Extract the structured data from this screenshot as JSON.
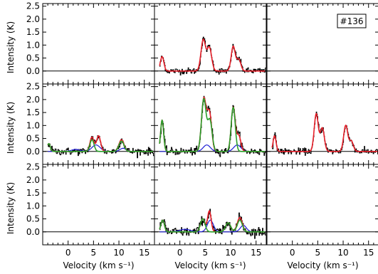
{
  "figure_tag": "#136",
  "colors": {
    "data": "#000000",
    "fit_total": "#e8202a",
    "fit_component": "#2ba02b",
    "component_2": "#1f1fd6"
  },
  "chart_data": {
    "type": "line",
    "grid_rows": 3,
    "grid_cols": 3,
    "grid": false,
    "xlabel": "Velocity (km s⁻¹)",
    "ylabel": "Intensity (K)",
    "xlim": [
      -5,
      17
    ],
    "ylim": [
      -0.5,
      2.6
    ],
    "xticks": [
      0,
      5,
      10,
      15
    ],
    "yticks": [
      0.0,
      0.5,
      1.0,
      1.5,
      2.0,
      2.5
    ],
    "xtick_labels": [
      "0",
      "5",
      "10",
      "15"
    ],
    "ytick_labels": [
      "0.0",
      "0.5",
      "1.0",
      "1.5",
      "2.0",
      "2.5"
    ],
    "panels": [
      {
        "row": 0,
        "col": 0,
        "empty": true
      },
      {
        "row": 0,
        "col": 1,
        "empty": false,
        "series": [
          {
            "role": "fit_total",
            "peaks": [
              {
                "v": -3.5,
                "a": 0.55,
                "w": 0.35
              },
              {
                "v": 4.6,
                "a": 1.2,
                "w": 0.45
              },
              {
                "v": 5.8,
                "a": 0.9,
                "w": 0.45
              },
              {
                "v": 10.5,
                "a": 0.95,
                "w": 0.4
              },
              {
                "v": 11.6,
                "a": 0.45,
                "w": 0.4
              }
            ]
          }
        ],
        "noise": 0.06
      },
      {
        "row": 0,
        "col": 2,
        "empty": true
      },
      {
        "row": 1,
        "col": 0,
        "empty": false,
        "series": [
          {
            "role": "fit_total",
            "peaks": [
              {
                "v": -3.8,
                "a": 0.3,
                "w": 0.3
              },
              {
                "v": 4.7,
                "a": 0.55,
                "w": 0.4
              },
              {
                "v": 6.0,
                "a": 0.6,
                "w": 0.4
              },
              {
                "v": 10.5,
                "a": 0.45,
                "w": 0.5
              }
            ]
          },
          {
            "role": "fit_component",
            "peaks": [
              {
                "v": -3.8,
                "a": 0.3,
                "w": 0.3
              },
              {
                "v": 4.7,
                "a": 0.45,
                "w": 0.4
              },
              {
                "v": 10.5,
                "a": 0.4,
                "w": 0.5
              }
            ]
          },
          {
            "role": "component_2",
            "peaks": [
              {
                "v": 1.5,
                "a": 0.08,
                "w": 0.8
              },
              {
                "v": 5.5,
                "a": 0.25,
                "w": 0.8
              },
              {
                "v": 10.8,
                "a": 0.12,
                "w": 0.6
              }
            ]
          }
        ],
        "noise": 0.07
      },
      {
        "row": 1,
        "col": 1,
        "empty": false,
        "series": [
          {
            "role": "fit_total",
            "peaks": [
              {
                "v": -3.5,
                "a": 1.2,
                "w": 0.3
              },
              {
                "v": 4.7,
                "a": 2.0,
                "w": 0.45
              },
              {
                "v": 5.8,
                "a": 1.5,
                "w": 0.45
              },
              {
                "v": 10.5,
                "a": 1.7,
                "w": 0.4
              },
              {
                "v": 11.6,
                "a": 0.6,
                "w": 0.4
              }
            ]
          },
          {
            "role": "fit_component",
            "peaks": [
              {
                "v": -3.5,
                "a": 1.2,
                "w": 0.3
              },
              {
                "v": 4.7,
                "a": 2.0,
                "w": 0.45
              },
              {
                "v": 5.9,
                "a": 1.2,
                "w": 0.45
              },
              {
                "v": 10.5,
                "a": 1.7,
                "w": 0.4
              }
            ]
          },
          {
            "role": "component_2",
            "peaks": [
              {
                "v": 5.3,
                "a": 0.25,
                "w": 0.7
              },
              {
                "v": 11.3,
                "a": 0.25,
                "w": 0.7
              }
            ]
          }
        ],
        "noise": 0.07
      },
      {
        "row": 1,
        "col": 2,
        "empty": false,
        "series": [
          {
            "role": "fit_total",
            "peaks": [
              {
                "v": -3.5,
                "a": 0.6,
                "w": 0.3
              },
              {
                "v": 4.7,
                "a": 1.45,
                "w": 0.4
              },
              {
                "v": 5.9,
                "a": 0.9,
                "w": 0.4
              },
              {
                "v": 10.5,
                "a": 1.0,
                "w": 0.4
              },
              {
                "v": 11.6,
                "a": 0.4,
                "w": 0.4
              }
            ]
          }
        ],
        "noise": 0.06
      },
      {
        "row": 2,
        "col": 0,
        "empty": true
      },
      {
        "row": 2,
        "col": 1,
        "empty": false,
        "series": [
          {
            "role": "fit_total",
            "peaks": [
              {
                "v": -3.4,
                "a": 0.45,
                "w": 0.35
              },
              {
                "v": 4.5,
                "a": 0.5,
                "w": 0.45
              },
              {
                "v": 5.8,
                "a": 0.8,
                "w": 0.35
              },
              {
                "v": 9.5,
                "a": 0.35,
                "w": 0.5
              },
              {
                "v": 11.8,
                "a": 0.55,
                "w": 0.5
              }
            ]
          },
          {
            "role": "fit_component",
            "peaks": [
              {
                "v": -3.4,
                "a": 0.45,
                "w": 0.35
              },
              {
                "v": 4.5,
                "a": 0.5,
                "w": 0.45
              },
              {
                "v": 9.5,
                "a": 0.35,
                "w": 0.5
              },
              {
                "v": 11.8,
                "a": 0.45,
                "w": 0.5
              }
            ]
          },
          {
            "role": "component_2",
            "peaks": [
              {
                "v": 1.0,
                "a": 0.1,
                "w": 1.0
              },
              {
                "v": 6.0,
                "a": 0.45,
                "w": 0.6
              },
              {
                "v": 12.5,
                "a": 0.25,
                "w": 0.6
              }
            ]
          }
        ],
        "noise": 0.09
      },
      {
        "row": 2,
        "col": 2,
        "empty": true
      }
    ]
  }
}
